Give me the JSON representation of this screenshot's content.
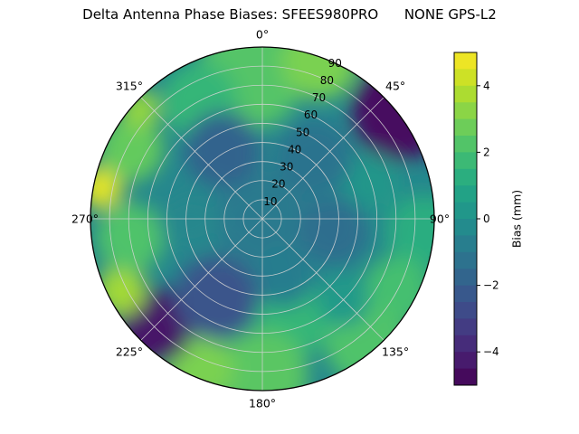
{
  "chart_data": {
    "type": "heatmap",
    "projection": "polar",
    "title": "Delta Antenna Phase Biases: SFEES980PRO      NONE GPS-L2",
    "antenna": "SFEES980PRO",
    "calibration": "NONE",
    "signal": "GPS-L2",
    "colormap": "viridis",
    "colormap_stops": [
      "#440154",
      "#482475",
      "#414487",
      "#355f8d",
      "#2a788e",
      "#21918c",
      "#22a884",
      "#44bf70",
      "#7ad151",
      "#bddf26",
      "#fde725"
    ],
    "value_range": [
      -5,
      5
    ],
    "rmax": 90,
    "rlabel_angle": 25,
    "grid": true,
    "angle_ticks": [
      {
        "value": 0,
        "label": "0°"
      },
      {
        "value": 45,
        "label": "45°"
      },
      {
        "value": 90,
        "label": "90°"
      },
      {
        "value": 135,
        "label": "135°"
      },
      {
        "value": 180,
        "label": "180°"
      },
      {
        "value": 225,
        "label": "225°"
      },
      {
        "value": 270,
        "label": "270°"
      },
      {
        "value": 315,
        "label": "315°"
      }
    ],
    "radial_ticks": [
      10,
      20,
      30,
      40,
      50,
      60,
      70,
      80,
      90
    ],
    "colorbar": {
      "label": "Bias (mm)",
      "range": [
        -5,
        5
      ],
      "ticks": [
        {
          "value": 4,
          "label": "4"
        },
        {
          "value": 2,
          "label": "2"
        },
        {
          "value": 0,
          "label": "0"
        },
        {
          "value": -2,
          "label": "−2"
        },
        {
          "value": -4,
          "label": "−4"
        }
      ]
    },
    "base_bias": -0.4,
    "regions": [
      {
        "az": 355,
        "r": 75,
        "radius": 28,
        "bias": 2.3
      },
      {
        "az": 20,
        "r": 88,
        "radius": 20,
        "bias": 3.0
      },
      {
        "az": 52,
        "r": 92,
        "radius": 26,
        "bias": -4.6
      },
      {
        "az": 72,
        "r": 60,
        "radius": 16,
        "bias": 0.2
      },
      {
        "az": 95,
        "r": 85,
        "radius": 20,
        "bias": 1.2
      },
      {
        "az": 118,
        "r": 80,
        "radius": 18,
        "bias": 2.0
      },
      {
        "az": 140,
        "r": 85,
        "radius": 22,
        "bias": 2.2
      },
      {
        "az": 163,
        "r": 55,
        "radius": 20,
        "bias": 1.6
      },
      {
        "az": 180,
        "r": 82,
        "radius": 24,
        "bias": 2.4
      },
      {
        "az": 203,
        "r": 85,
        "radius": 18,
        "bias": 3.0
      },
      {
        "az": 225,
        "r": 80,
        "radius": 20,
        "bias": -4.4
      },
      {
        "az": 243,
        "r": 83,
        "radius": 13,
        "bias": 3.6
      },
      {
        "az": 262,
        "r": 70,
        "radius": 18,
        "bias": 2.2
      },
      {
        "az": 281,
        "r": 86,
        "radius": 11,
        "bias": 4.6
      },
      {
        "az": 298,
        "r": 78,
        "radius": 17,
        "bias": 2.6
      },
      {
        "az": 312,
        "r": 86,
        "radius": 10,
        "bias": 3.4
      },
      {
        "az": 332,
        "r": 70,
        "radius": 20,
        "bias": 1.6
      },
      {
        "az": 0,
        "r": 0,
        "radius": 26,
        "bias": -0.9
      },
      {
        "az": 330,
        "r": 42,
        "radius": 20,
        "bias": -1.8
      },
      {
        "az": 40,
        "r": 42,
        "radius": 20,
        "bias": -1.2
      },
      {
        "az": 100,
        "r": 38,
        "radius": 18,
        "bias": -1.4
      },
      {
        "az": 160,
        "r": 32,
        "radius": 16,
        "bias": -0.8
      },
      {
        "az": 210,
        "r": 48,
        "radius": 22,
        "bias": -2.4
      },
      {
        "az": 268,
        "r": 38,
        "radius": 16,
        "bias": -0.4
      },
      {
        "az": 135,
        "r": 60,
        "radius": 14,
        "bias": 0.4
      }
    ]
  }
}
